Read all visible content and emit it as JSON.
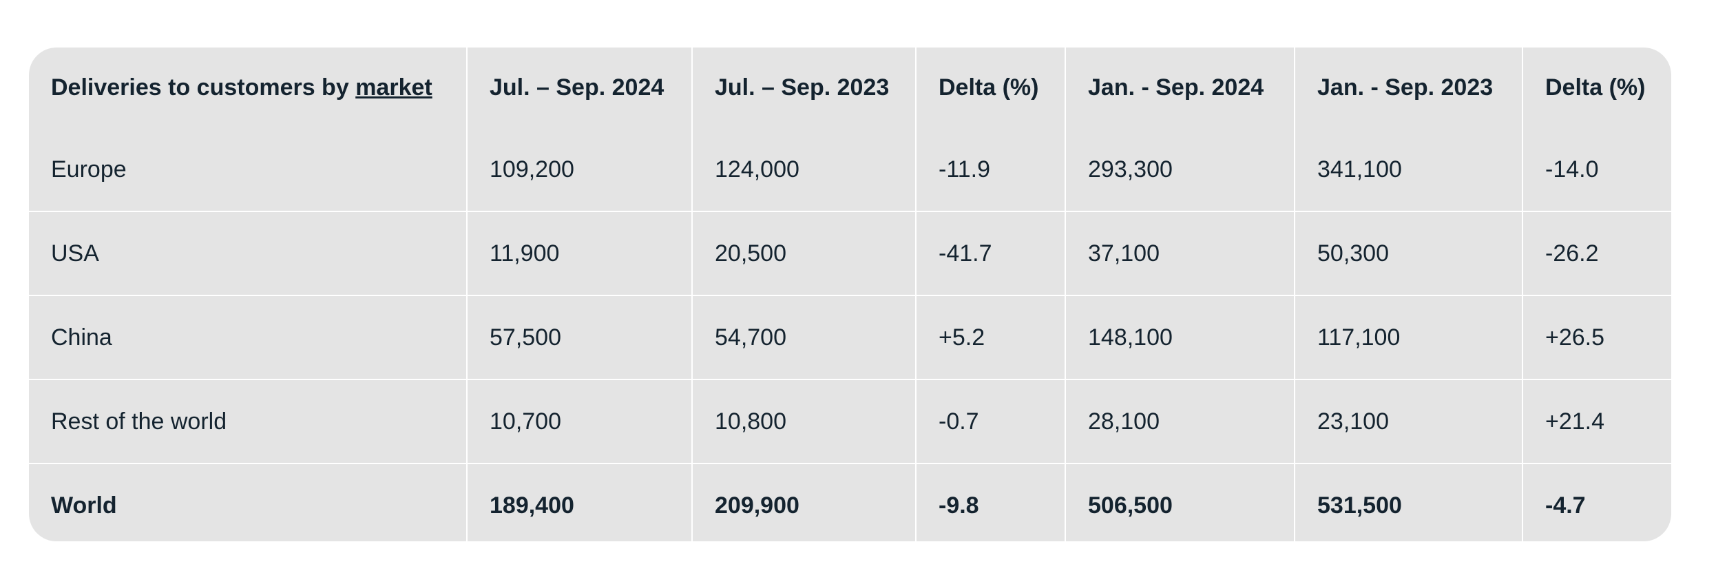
{
  "table": {
    "header_first": {
      "text": "Deliveries to customers by",
      "link": "market"
    },
    "header": [
      "Jul. – Sep. 2024",
      "Jul. – Sep. 2023",
      "Delta (%)",
      "Jan. - Sep. 2024",
      "Jan. - Sep. 2023",
      "Delta (%)"
    ],
    "rows": [
      [
        "Europe",
        "109,200",
        "124,000",
        "-11.9",
        "293,300",
        "341,100",
        "-14.0"
      ],
      [
        "USA",
        "11,900",
        "20,500",
        "-41.7",
        "37,100",
        "50,300",
        "-26.2"
      ],
      [
        "China",
        "57,500",
        "54,700",
        "+5.2",
        "148,100",
        "117,100",
        "+26.5"
      ],
      [
        "Rest of the world",
        "10,700",
        "10,800",
        "-0.7",
        "28,100",
        "23,100",
        "+21.4"
      ]
    ],
    "total": [
      "World",
      "189,400",
      "209,900",
      "-9.8",
      "506,500",
      "531,500",
      "-4.7"
    ]
  }
}
